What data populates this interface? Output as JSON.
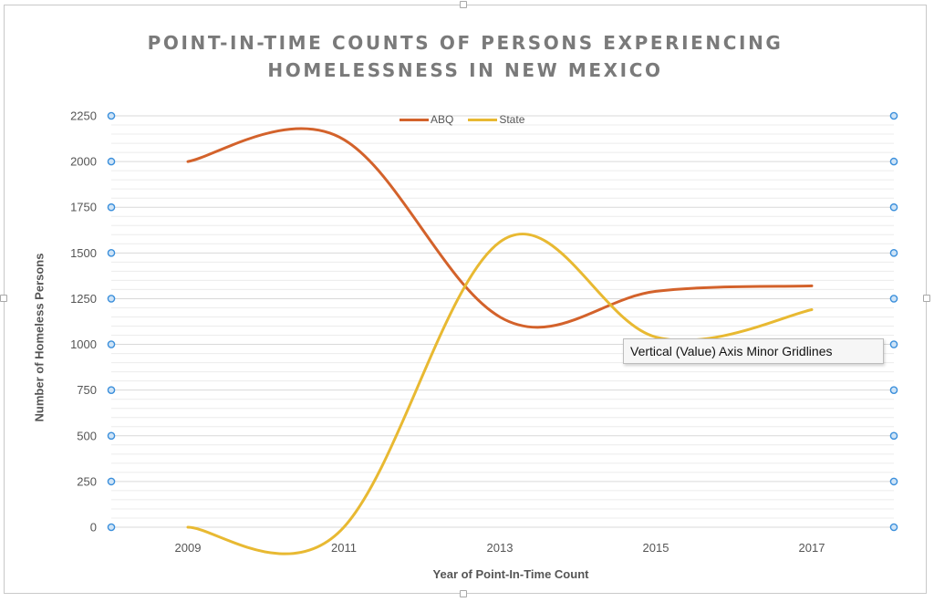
{
  "chart_data": {
    "type": "line",
    "title": "POINT-IN-TIME COUNTS OF PERSONS EXPERIENCING HOMELESSNESS IN NEW MEXICO",
    "xlabel": "Year of Point-In-Time Count",
    "ylabel": "Number of Homeless Persons",
    "x": [
      2009,
      2011,
      2013,
      2015,
      2017
    ],
    "x_ticks": [
      "2009",
      "2011",
      "2013",
      "2015",
      "2017"
    ],
    "ylim": [
      0,
      2250
    ],
    "y_ticks": [
      "0",
      "250",
      "500",
      "750",
      "1000",
      "1250",
      "1500",
      "1750",
      "2000",
      "2250"
    ],
    "grid": {
      "major": true,
      "minor": true,
      "minor_step": 50
    },
    "smoothed": true,
    "legend_position": "top",
    "series": [
      {
        "name": "ABQ",
        "color": "#d3622b",
        "values": [
          2000,
          2120,
          1150,
          1290,
          1320
        ]
      },
      {
        "name": "State",
        "color": "#e8b932",
        "values": [
          0,
          0,
          1560,
          1040,
          1190
        ]
      }
    ],
    "colors": {
      "axis_text": "#555555",
      "minor_grid": "#ececec",
      "major_grid": "#d9d9d9",
      "selection_handle": "#3b8fdb"
    }
  },
  "tooltip": {
    "text": "Vertical (Value) Axis Minor Gridlines"
  }
}
